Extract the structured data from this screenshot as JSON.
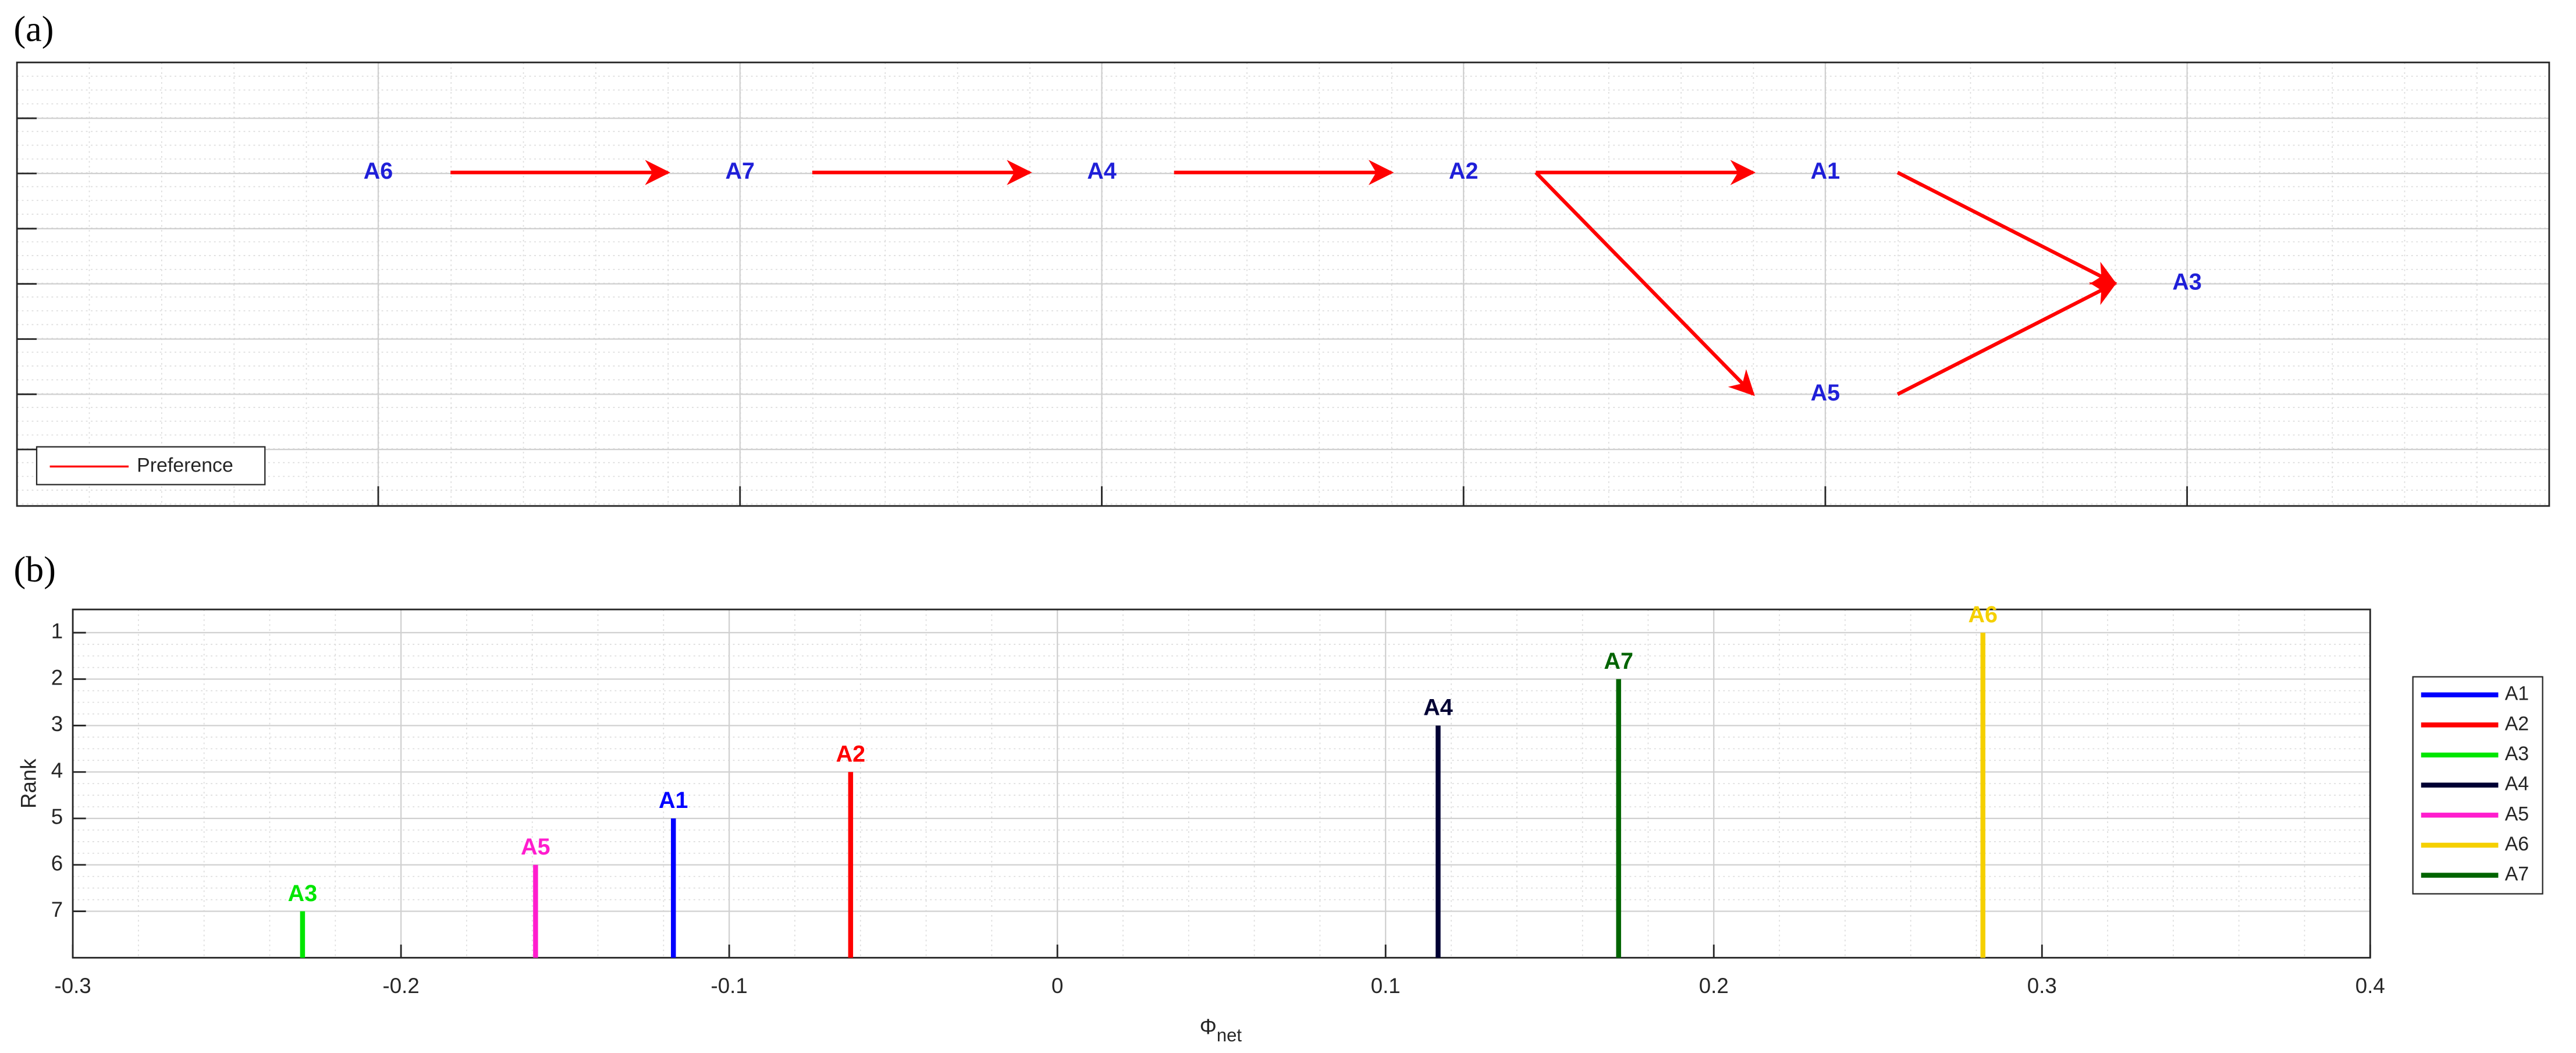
{
  "chart_data": [
    {
      "type": "graph",
      "panel_label": "(a)",
      "nodes": [
        "A6",
        "A7",
        "A4",
        "A2",
        "A1",
        "A5",
        "A3"
      ],
      "edges": [
        [
          0,
          1
        ],
        [
          1,
          2
        ],
        [
          2,
          3
        ],
        [
          3,
          4
        ],
        [
          3,
          5
        ],
        [
          4,
          6
        ],
        [
          5,
          6
        ]
      ],
      "edge_name": "Preference",
      "edge_color": "#ff0000",
      "node_color": "#1f1fd8",
      "grid": true,
      "legend": "lower left"
    },
    {
      "type": "stem",
      "panel_label": "(b)",
      "xlabel": "Φ",
      "xlabel_sub": "net",
      "ylabel": "Rank",
      "xlim": [
        -0.3,
        0.4
      ],
      "xticks": [
        -0.3,
        -0.2,
        -0.1,
        0,
        0.1,
        0.2,
        0.3,
        0.4
      ],
      "ylim": [
        8,
        0.5
      ],
      "yticks": [
        1,
        2,
        3,
        4,
        5,
        6,
        7
      ],
      "grid": true,
      "legend": "right",
      "series": [
        {
          "name": "A1",
          "color": "#0000ff",
          "x": [
            -0.117
          ],
          "values": [
            5
          ]
        },
        {
          "name": "A2",
          "color": "#ff0000",
          "x": [
            -0.063
          ],
          "values": [
            4
          ]
        },
        {
          "name": "A3",
          "color": "#00e600",
          "x": [
            -0.23
          ],
          "values": [
            7
          ]
        },
        {
          "name": "A4",
          "color": "#000033",
          "x": [
            0.116
          ],
          "values": [
            3
          ]
        },
        {
          "name": "A5",
          "color": "#ff1dce",
          "x": [
            -0.159
          ],
          "values": [
            6
          ]
        },
        {
          "name": "A6",
          "color": "#f5d000",
          "x": [
            0.282
          ],
          "values": [
            1
          ]
        },
        {
          "name": "A7",
          "color": "#006400",
          "x": [
            0.171
          ],
          "values": [
            2
          ]
        }
      ]
    }
  ]
}
